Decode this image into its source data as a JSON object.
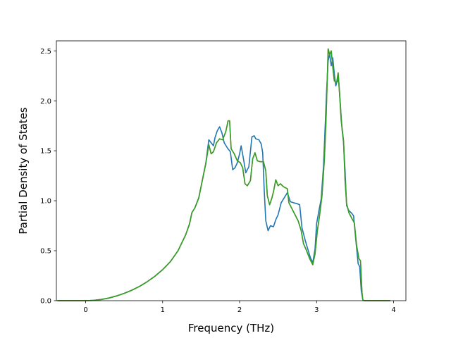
{
  "chart_data": {
    "type": "line",
    "title": "",
    "xlabel": "Frequency (THz)",
    "ylabel": "Partial Density of States",
    "xlim": [
      -0.38,
      4.16
    ],
    "ylim": [
      0.0,
      2.6
    ],
    "xticks": [
      0,
      1,
      2,
      3,
      4
    ],
    "yticks": [
      0.0,
      0.5,
      1.0,
      1.5,
      2.0,
      2.5
    ],
    "xtick_labels": [
      "0",
      "1",
      "2",
      "3",
      "4"
    ],
    "ytick_labels": [
      "0.0",
      "0.5",
      "1.0",
      "1.5",
      "2.0",
      "2.5"
    ],
    "grid": false,
    "legend": "none",
    "series": [
      {
        "color": "#1f77b4",
        "points": [
          [
            -0.36,
            0
          ],
          [
            0,
            0
          ],
          [
            0.1,
            0.003
          ],
          [
            0.2,
            0.012
          ],
          [
            0.3,
            0.026
          ],
          [
            0.4,
            0.047
          ],
          [
            0.5,
            0.073
          ],
          [
            0.6,
            0.105
          ],
          [
            0.7,
            0.143
          ],
          [
            0.8,
            0.19
          ],
          [
            0.9,
            0.245
          ],
          [
            1.0,
            0.31
          ],
          [
            1.1,
            0.39
          ],
          [
            1.2,
            0.5
          ],
          [
            1.3,
            0.66
          ],
          [
            1.35,
            0.77
          ],
          [
            1.38,
            0.88
          ],
          [
            1.42,
            0.93
          ],
          [
            1.47,
            1.03
          ],
          [
            1.52,
            1.22
          ],
          [
            1.56,
            1.37
          ],
          [
            1.6,
            1.61
          ],
          [
            1.63,
            1.58
          ],
          [
            1.66,
            1.55
          ],
          [
            1.68,
            1.63
          ],
          [
            1.71,
            1.7
          ],
          [
            1.74,
            1.74
          ],
          [
            1.77,
            1.68
          ],
          [
            1.8,
            1.58
          ],
          [
            1.84,
            1.53
          ],
          [
            1.88,
            1.49
          ],
          [
            1.91,
            1.31
          ],
          [
            1.94,
            1.33
          ],
          [
            1.97,
            1.38
          ],
          [
            2.0,
            1.47
          ],
          [
            2.02,
            1.55
          ],
          [
            2.05,
            1.42
          ],
          [
            2.08,
            1.28
          ],
          [
            2.12,
            1.34
          ],
          [
            2.16,
            1.64
          ],
          [
            2.19,
            1.65
          ],
          [
            2.21,
            1.62
          ],
          [
            2.25,
            1.61
          ],
          [
            2.28,
            1.57
          ],
          [
            2.3,
            1.48
          ],
          [
            2.32,
            1.1
          ],
          [
            2.34,
            0.8
          ],
          [
            2.37,
            0.7
          ],
          [
            2.4,
            0.75
          ],
          [
            2.44,
            0.74
          ],
          [
            2.47,
            0.81
          ],
          [
            2.5,
            0.86
          ],
          [
            2.54,
            0.98
          ],
          [
            2.58,
            1.03
          ],
          [
            2.62,
            1.08
          ],
          [
            2.66,
            0.99
          ],
          [
            2.7,
            0.98
          ],
          [
            2.75,
            0.97
          ],
          [
            2.78,
            0.96
          ],
          [
            2.81,
            0.73
          ],
          [
            2.85,
            0.61
          ],
          [
            2.88,
            0.53
          ],
          [
            2.92,
            0.43
          ],
          [
            2.95,
            0.38
          ],
          [
            2.98,
            0.52
          ],
          [
            3.0,
            0.77
          ],
          [
            3.03,
            0.9
          ],
          [
            3.06,
            1.02
          ],
          [
            3.09,
            1.35
          ],
          [
            3.11,
            1.72
          ],
          [
            3.13,
            2.1
          ],
          [
            3.15,
            2.4
          ],
          [
            3.17,
            2.47
          ],
          [
            3.19,
            2.35
          ],
          [
            3.21,
            2.43
          ],
          [
            3.23,
            2.27
          ],
          [
            3.25,
            2.15
          ],
          [
            3.27,
            2.21
          ],
          [
            3.29,
            2.18
          ],
          [
            3.31,
            1.95
          ],
          [
            3.33,
            1.72
          ],
          [
            3.35,
            1.58
          ],
          [
            3.37,
            1.3
          ],
          [
            3.39,
            0.95
          ],
          [
            3.42,
            0.9
          ],
          [
            3.45,
            0.88
          ],
          [
            3.48,
            0.85
          ],
          [
            3.51,
            0.6
          ],
          [
            3.54,
            0.37
          ],
          [
            3.56,
            0.34
          ],
          [
            3.58,
            0.1
          ],
          [
            3.6,
            0.01
          ],
          [
            3.62,
            0
          ],
          [
            3.95,
            0
          ]
        ]
      },
      {
        "color": "#ff7f0e",
        "points": [
          [
            -0.36,
            0
          ],
          [
            0,
            0
          ],
          [
            0.1,
            0.003
          ],
          [
            0.2,
            0.012
          ],
          [
            0.3,
            0.026
          ],
          [
            0.4,
            0.047
          ],
          [
            0.5,
            0.073
          ],
          [
            0.6,
            0.105
          ],
          [
            0.7,
            0.143
          ],
          [
            0.8,
            0.19
          ],
          [
            0.9,
            0.245
          ],
          [
            1.0,
            0.31
          ],
          [
            1.1,
            0.39
          ],
          [
            1.2,
            0.5
          ],
          [
            1.3,
            0.66
          ],
          [
            1.35,
            0.77
          ],
          [
            1.38,
            0.88
          ],
          [
            1.42,
            0.93
          ],
          [
            1.47,
            1.03
          ],
          [
            1.52,
            1.22
          ],
          [
            1.56,
            1.37
          ],
          [
            1.6,
            1.56
          ],
          [
            1.63,
            1.47
          ],
          [
            1.66,
            1.49
          ],
          [
            1.7,
            1.58
          ],
          [
            1.74,
            1.62
          ],
          [
            1.78,
            1.61
          ],
          [
            1.82,
            1.69
          ],
          [
            1.85,
            1.8
          ],
          [
            1.87,
            1.8
          ],
          [
            1.89,
            1.52
          ],
          [
            1.93,
            1.47
          ],
          [
            1.97,
            1.4
          ],
          [
            2.01,
            1.38
          ],
          [
            2.04,
            1.33
          ],
          [
            2.07,
            1.17
          ],
          [
            2.1,
            1.15
          ],
          [
            2.14,
            1.2
          ],
          [
            2.17,
            1.42
          ],
          [
            2.2,
            1.48
          ],
          [
            2.23,
            1.4
          ],
          [
            2.27,
            1.39
          ],
          [
            2.31,
            1.39
          ],
          [
            2.34,
            1.3
          ],
          [
            2.36,
            1.05
          ],
          [
            2.39,
            0.96
          ],
          [
            2.42,
            1.03
          ],
          [
            2.44,
            1.09
          ],
          [
            2.47,
            1.21
          ],
          [
            2.5,
            1.15
          ],
          [
            2.53,
            1.17
          ],
          [
            2.57,
            1.14
          ],
          [
            2.62,
            1.12
          ],
          [
            2.64,
            0.98
          ],
          [
            2.68,
            0.92
          ],
          [
            2.72,
            0.86
          ],
          [
            2.76,
            0.8
          ],
          [
            2.8,
            0.7
          ],
          [
            2.83,
            0.57
          ],
          [
            2.87,
            0.5
          ],
          [
            2.91,
            0.42
          ],
          [
            2.95,
            0.36
          ],
          [
            2.98,
            0.47
          ],
          [
            3.01,
            0.7
          ],
          [
            3.04,
            0.86
          ],
          [
            3.07,
            1.05
          ],
          [
            3.1,
            1.4
          ],
          [
            3.12,
            1.75
          ],
          [
            3.14,
            2.25
          ],
          [
            3.15,
            2.52
          ],
          [
            3.17,
            2.46
          ],
          [
            3.19,
            2.5
          ],
          [
            3.21,
            2.34
          ],
          [
            3.23,
            2.2
          ],
          [
            3.26,
            2.18
          ],
          [
            3.28,
            2.28
          ],
          [
            3.3,
            2.05
          ],
          [
            3.32,
            1.8
          ],
          [
            3.35,
            1.6
          ],
          [
            3.37,
            1.2
          ],
          [
            3.39,
            0.97
          ],
          [
            3.42,
            0.88
          ],
          [
            3.46,
            0.82
          ],
          [
            3.49,
            0.78
          ],
          [
            3.52,
            0.55
          ],
          [
            3.55,
            0.42
          ],
          [
            3.57,
            0.4
          ],
          [
            3.59,
            0.08
          ],
          [
            3.6,
            0.01
          ],
          [
            3.62,
            0
          ],
          [
            3.95,
            0
          ]
        ]
      },
      {
        "color": "#2ca02c",
        "points": [
          [
            -0.36,
            0
          ],
          [
            0,
            0
          ],
          [
            0.1,
            0.003
          ],
          [
            0.2,
            0.012
          ],
          [
            0.3,
            0.026
          ],
          [
            0.4,
            0.047
          ],
          [
            0.5,
            0.073
          ],
          [
            0.6,
            0.105
          ],
          [
            0.7,
            0.143
          ],
          [
            0.8,
            0.19
          ],
          [
            0.9,
            0.245
          ],
          [
            1.0,
            0.31
          ],
          [
            1.1,
            0.39
          ],
          [
            1.2,
            0.5
          ],
          [
            1.3,
            0.66
          ],
          [
            1.35,
            0.77
          ],
          [
            1.38,
            0.88
          ],
          [
            1.42,
            0.93
          ],
          [
            1.47,
            1.03
          ],
          [
            1.52,
            1.22
          ],
          [
            1.56,
            1.37
          ],
          [
            1.6,
            1.56
          ],
          [
            1.63,
            1.47
          ],
          [
            1.66,
            1.49
          ],
          [
            1.7,
            1.58
          ],
          [
            1.74,
            1.62
          ],
          [
            1.78,
            1.61
          ],
          [
            1.82,
            1.69
          ],
          [
            1.85,
            1.8
          ],
          [
            1.87,
            1.8
          ],
          [
            1.89,
            1.52
          ],
          [
            1.93,
            1.47
          ],
          [
            1.97,
            1.4
          ],
          [
            2.01,
            1.38
          ],
          [
            2.04,
            1.33
          ],
          [
            2.07,
            1.17
          ],
          [
            2.1,
            1.15
          ],
          [
            2.14,
            1.2
          ],
          [
            2.17,
            1.42
          ],
          [
            2.2,
            1.48
          ],
          [
            2.23,
            1.4
          ],
          [
            2.27,
            1.39
          ],
          [
            2.31,
            1.39
          ],
          [
            2.34,
            1.3
          ],
          [
            2.36,
            1.05
          ],
          [
            2.39,
            0.96
          ],
          [
            2.42,
            1.03
          ],
          [
            2.44,
            1.09
          ],
          [
            2.47,
            1.21
          ],
          [
            2.5,
            1.15
          ],
          [
            2.53,
            1.17
          ],
          [
            2.57,
            1.14
          ],
          [
            2.62,
            1.12
          ],
          [
            2.64,
            0.98
          ],
          [
            2.68,
            0.92
          ],
          [
            2.72,
            0.86
          ],
          [
            2.76,
            0.8
          ],
          [
            2.8,
            0.7
          ],
          [
            2.83,
            0.57
          ],
          [
            2.87,
            0.5
          ],
          [
            2.91,
            0.42
          ],
          [
            2.95,
            0.36
          ],
          [
            2.98,
            0.47
          ],
          [
            3.01,
            0.7
          ],
          [
            3.04,
            0.86
          ],
          [
            3.07,
            1.05
          ],
          [
            3.1,
            1.4
          ],
          [
            3.12,
            1.75
          ],
          [
            3.14,
            2.25
          ],
          [
            3.15,
            2.52
          ],
          [
            3.17,
            2.46
          ],
          [
            3.19,
            2.5
          ],
          [
            3.21,
            2.34
          ],
          [
            3.23,
            2.2
          ],
          [
            3.26,
            2.18
          ],
          [
            3.28,
            2.28
          ],
          [
            3.3,
            2.05
          ],
          [
            3.32,
            1.8
          ],
          [
            3.35,
            1.6
          ],
          [
            3.37,
            1.2
          ],
          [
            3.39,
            0.97
          ],
          [
            3.42,
            0.88
          ],
          [
            3.46,
            0.82
          ],
          [
            3.49,
            0.78
          ],
          [
            3.52,
            0.55
          ],
          [
            3.55,
            0.42
          ],
          [
            3.57,
            0.4
          ],
          [
            3.59,
            0.08
          ],
          [
            3.6,
            0.01
          ],
          [
            3.62,
            0
          ],
          [
            3.95,
            0
          ]
        ]
      }
    ]
  }
}
